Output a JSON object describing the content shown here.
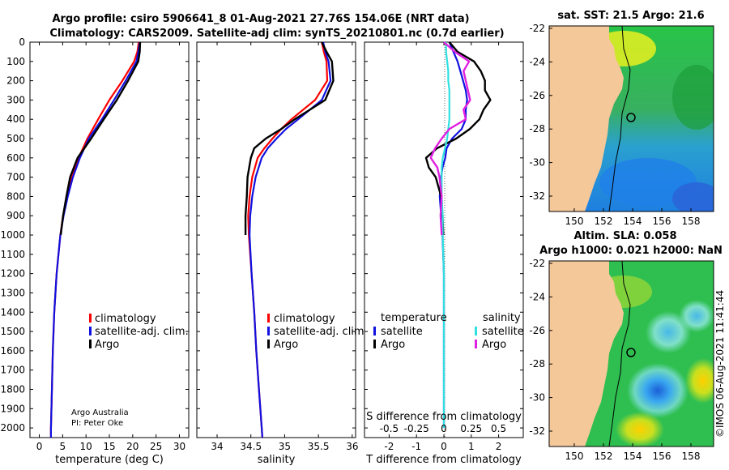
{
  "figure": {
    "title_line1": "Argo profile: csiro 5906641_8 01-Aug-2021 27.76S 154.06E (NRT data)",
    "title_line2": "Climatology: CARS2009. Satellite-adj clim: synTS_20210801.nc (0.7d earlier)",
    "credit_line1": "Argo Australia",
    "credit_line2": "PI: Peter Oke",
    "stamp": "©IMOS 06-Aug-2021 11:41:44"
  },
  "colors": {
    "climatology": "#ff0000",
    "satellite": "#1010e0",
    "argo": "#000000",
    "s_sat": "#30e0e0",
    "s_argo": "#e020e0",
    "land": "#f5c89a"
  },
  "legends": {
    "temp": [
      "climatology",
      "satellite-adj. clim.",
      "Argo"
    ],
    "sal": [
      "climatology",
      "satellite-adj. clim.",
      "Argo"
    ],
    "diff_head_t": "temperature",
    "diff_head_s": "salinity",
    "diff_t": [
      "satellite",
      "Argo"
    ],
    "diff_s": [
      "satellite",
      "Argo"
    ]
  },
  "maps": {
    "sst_title": "sat. SST: 21.5 Argo: 21.6",
    "sla_title1": "Altim. SLA: 0.058",
    "sla_title2": "Argo h1000: 0.021 h2000: NaN",
    "lat_ticks": [
      "-22",
      "-24",
      "-26",
      "-28",
      "-30",
      "-32"
    ],
    "lon_ticks": [
      "150",
      "152",
      "154",
      "156",
      "158"
    ]
  },
  "chart_data": [
    {
      "type": "line",
      "title": "",
      "xlabel": "temperature (deg C)",
      "ylabel": "",
      "xlim": [
        -2,
        32
      ],
      "ylim": [
        2050,
        0
      ],
      "xticks": [
        "0",
        "5",
        "10",
        "15",
        "20",
        "25",
        "30"
      ],
      "yticks": [
        "0",
        "100",
        "200",
        "300",
        "400",
        "500",
        "600",
        "700",
        "800",
        "900",
        "1000",
        "1100",
        "1200",
        "1300",
        "1400",
        "1500",
        "1600",
        "1700",
        "1800",
        "1900",
        "2000"
      ],
      "depth": [
        0,
        50,
        100,
        200,
        300,
        400,
        500,
        600,
        700,
        800,
        900,
        1000,
        1200,
        1400,
        1600,
        1800,
        2000,
        2050
      ],
      "series": [
        {
          "name": "climatology",
          "values": [
            21.3,
            21.0,
            20.3,
            17.8,
            15.0,
            12.6,
            10.3,
            8.4,
            7.0,
            5.9,
            5.1,
            4.5,
            3.7,
            3.2,
            2.9,
            2.7,
            2.5,
            2.5
          ]
        },
        {
          "name": "satellite-adj. clim.",
          "values": [
            21.5,
            21.2,
            20.8,
            18.5,
            16.0,
            13.4,
            10.6,
            8.7,
            7.2,
            6.1,
            5.2,
            4.5,
            3.7,
            3.2,
            2.9,
            2.7,
            2.5,
            2.5
          ]
        },
        {
          "name": "Argo",
          "values": [
            21.6,
            21.5,
            21.2,
            19.0,
            16.6,
            13.8,
            11.1,
            8.2,
            6.6,
            5.8,
            5.1,
            4.6,
            null,
            null,
            null,
            null,
            null,
            null
          ]
        }
      ]
    },
    {
      "type": "line",
      "xlabel": "salinity",
      "xlim": [
        33.7,
        36.05
      ],
      "ylim": [
        2050,
        0
      ],
      "xticks": [
        "34",
        "34.5",
        "35",
        "35.5",
        "36"
      ],
      "depth": [
        0,
        50,
        100,
        200,
        300,
        400,
        450,
        500,
        550,
        600,
        700,
        800,
        900,
        1000,
        1200,
        1400,
        1600,
        1800,
        2000,
        2050
      ],
      "series": [
        {
          "name": "climatology",
          "values": [
            35.55,
            35.58,
            35.62,
            35.63,
            35.45,
            35.1,
            34.95,
            34.82,
            34.7,
            34.6,
            34.52,
            34.48,
            34.46,
            34.47,
            34.51,
            34.55,
            34.58,
            34.62,
            34.66,
            34.67
          ]
        },
        {
          "name": "satellite-adj. clim.",
          "values": [
            35.57,
            35.6,
            35.65,
            35.68,
            35.55,
            35.2,
            35.02,
            34.88,
            34.75,
            34.66,
            34.57,
            34.52,
            34.49,
            34.48,
            34.51,
            34.55,
            34.58,
            34.62,
            34.66,
            34.67
          ]
        },
        {
          "name": "Argo",
          "values": [
            35.55,
            35.62,
            35.7,
            35.72,
            35.6,
            35.15,
            34.95,
            34.72,
            34.55,
            34.5,
            34.45,
            34.44,
            34.42,
            34.42,
            null,
            null,
            null,
            null,
            null,
            null
          ]
        }
      ]
    },
    {
      "type": "line",
      "xlabel": "T difference from climatology",
      "xlabel_top": "S difference from climatology",
      "xlim": [
        -2.9,
        2.9
      ],
      "ylim": [
        2050,
        0
      ],
      "xticks": [
        "-2",
        "-1",
        "0",
        "1",
        "2"
      ],
      "xticks_s": [
        "-0.5",
        "-0.25",
        "0",
        "0.25",
        "0.5"
      ],
      "depth": [
        0,
        50,
        100,
        150,
        200,
        250,
        300,
        350,
        400,
        450,
        500,
        550,
        600,
        650,
        700,
        800,
        900,
        1000,
        1200,
        1400,
        1600,
        1800,
        2000
      ],
      "series": [
        {
          "name": "T satellite",
          "values": [
            0.2,
            0.35,
            0.5,
            0.6,
            0.7,
            0.8,
            0.85,
            0.8,
            0.8,
            0.65,
            0.3,
            0.1,
            0.05,
            -0.05,
            -0.1,
            -0.15,
            -0.1,
            -0.05,
            0,
            0,
            0,
            0,
            0
          ]
        },
        {
          "name": "T Argo",
          "values": [
            0.2,
            0.5,
            1.1,
            1.35,
            1.5,
            1.5,
            1.7,
            1.45,
            1.3,
            0.95,
            0.45,
            -0.25,
            -0.65,
            -0.55,
            -0.3,
            -0.1,
            -0.05,
            -0.02,
            null,
            null,
            null,
            null,
            null
          ]
        },
        {
          "name": "S satellite",
          "values": [
            0.02,
            0.02,
            0.03,
            0.04,
            0.04,
            0.05,
            0.05,
            0.05,
            0.05,
            0.04,
            0.03,
            0.01,
            -0.01,
            -0.02,
            -0.02,
            -0.02,
            -0.01,
            -0.01,
            0,
            0,
            0,
            0,
            0
          ]
        },
        {
          "name": "S Argo",
          "values": [
            0.0,
            0.1,
            0.23,
            0.18,
            0.2,
            0.22,
            0.24,
            0.18,
            0.2,
            0.05,
            -0.02,
            -0.08,
            -0.12,
            -0.06,
            -0.04,
            -0.02,
            -0.03,
            -0.02,
            null,
            null,
            null,
            null,
            null
          ]
        }
      ]
    }
  ]
}
